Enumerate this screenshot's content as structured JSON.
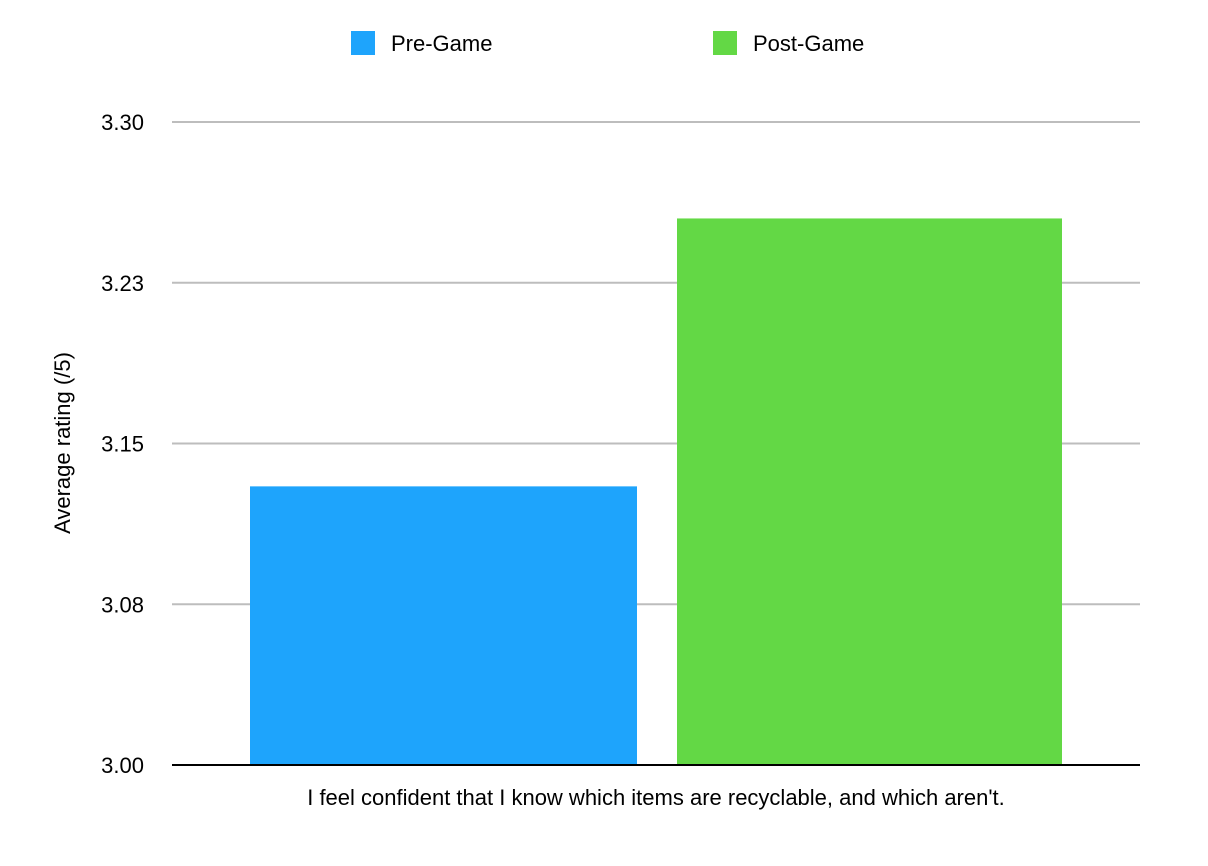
{
  "chart_data": {
    "type": "bar",
    "title": "",
    "xlabel": "",
    "ylabel": "Average rating (/5)",
    "categories": [
      "I feel confident that I know which items are recyclable, and which aren't."
    ],
    "series": [
      {
        "name": "Pre-Game",
        "color": "#1ea4fc",
        "values": [
          3.13
        ]
      },
      {
        "name": "Post-Game",
        "color": "#63d845",
        "values": [
          3.255
        ]
      }
    ],
    "ylim": [
      3.0,
      3.3
    ],
    "yticks": [
      "3.00",
      "3.08",
      "3.15",
      "3.23",
      "3.30"
    ],
    "grid": true,
    "legend_position": "top"
  }
}
